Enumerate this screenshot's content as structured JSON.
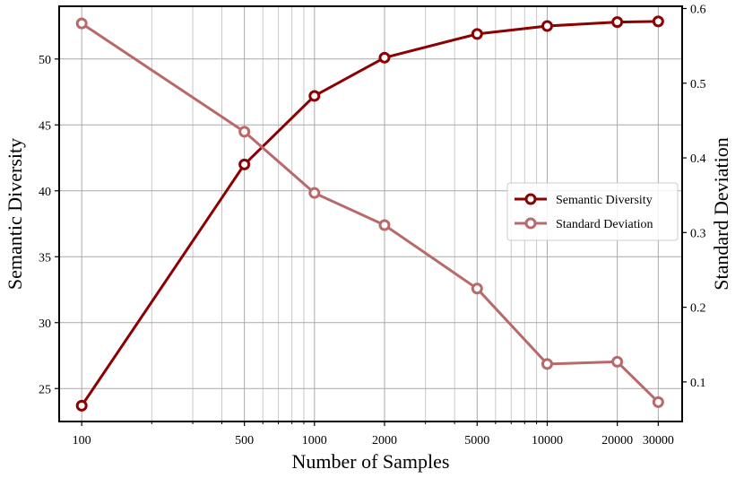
{
  "chart_data": {
    "type": "line",
    "xscale": "log",
    "xlim": [
      80,
      38000
    ],
    "x_ticks": [
      100,
      500,
      1000,
      2000,
      5000,
      10000,
      20000,
      30000
    ],
    "x_tick_labels": [
      "100",
      "500",
      "1000",
      "2000",
      "5000",
      "10000",
      "20000",
      "30000"
    ],
    "xlabel": "Number of Samples",
    "ylabel_left": "Semantic Diversity",
    "ylabel_right": "Standard Deviation",
    "ylim_left": [
      22.5,
      54
    ],
    "yticks_left": [
      25,
      30,
      35,
      40,
      45,
      50
    ],
    "ylim_right": [
      0.047,
      0.603
    ],
    "yticks_right": [
      0.1,
      0.2,
      0.3,
      0.4,
      0.5,
      0.6
    ],
    "yticks_right_labels": [
      "0.1",
      "0.2",
      "0.3",
      "0.4",
      "0.5",
      "0.6"
    ],
    "grid": true,
    "legend_position": "right",
    "x": [
      100,
      500,
      1000,
      2000,
      5000,
      10000,
      20000,
      30000
    ],
    "series": [
      {
        "name": "Semantic Diversity",
        "axis": "left",
        "color": "#8b0000",
        "values": [
          23.7,
          42.0,
          47.2,
          50.1,
          51.9,
          52.5,
          52.8,
          52.85
        ]
      },
      {
        "name": "Standard Deviation",
        "axis": "right",
        "color": "#b86a6a",
        "values": [
          0.58,
          0.435,
          0.353,
          0.31,
          0.225,
          0.124,
          0.127,
          0.073
        ]
      }
    ]
  }
}
